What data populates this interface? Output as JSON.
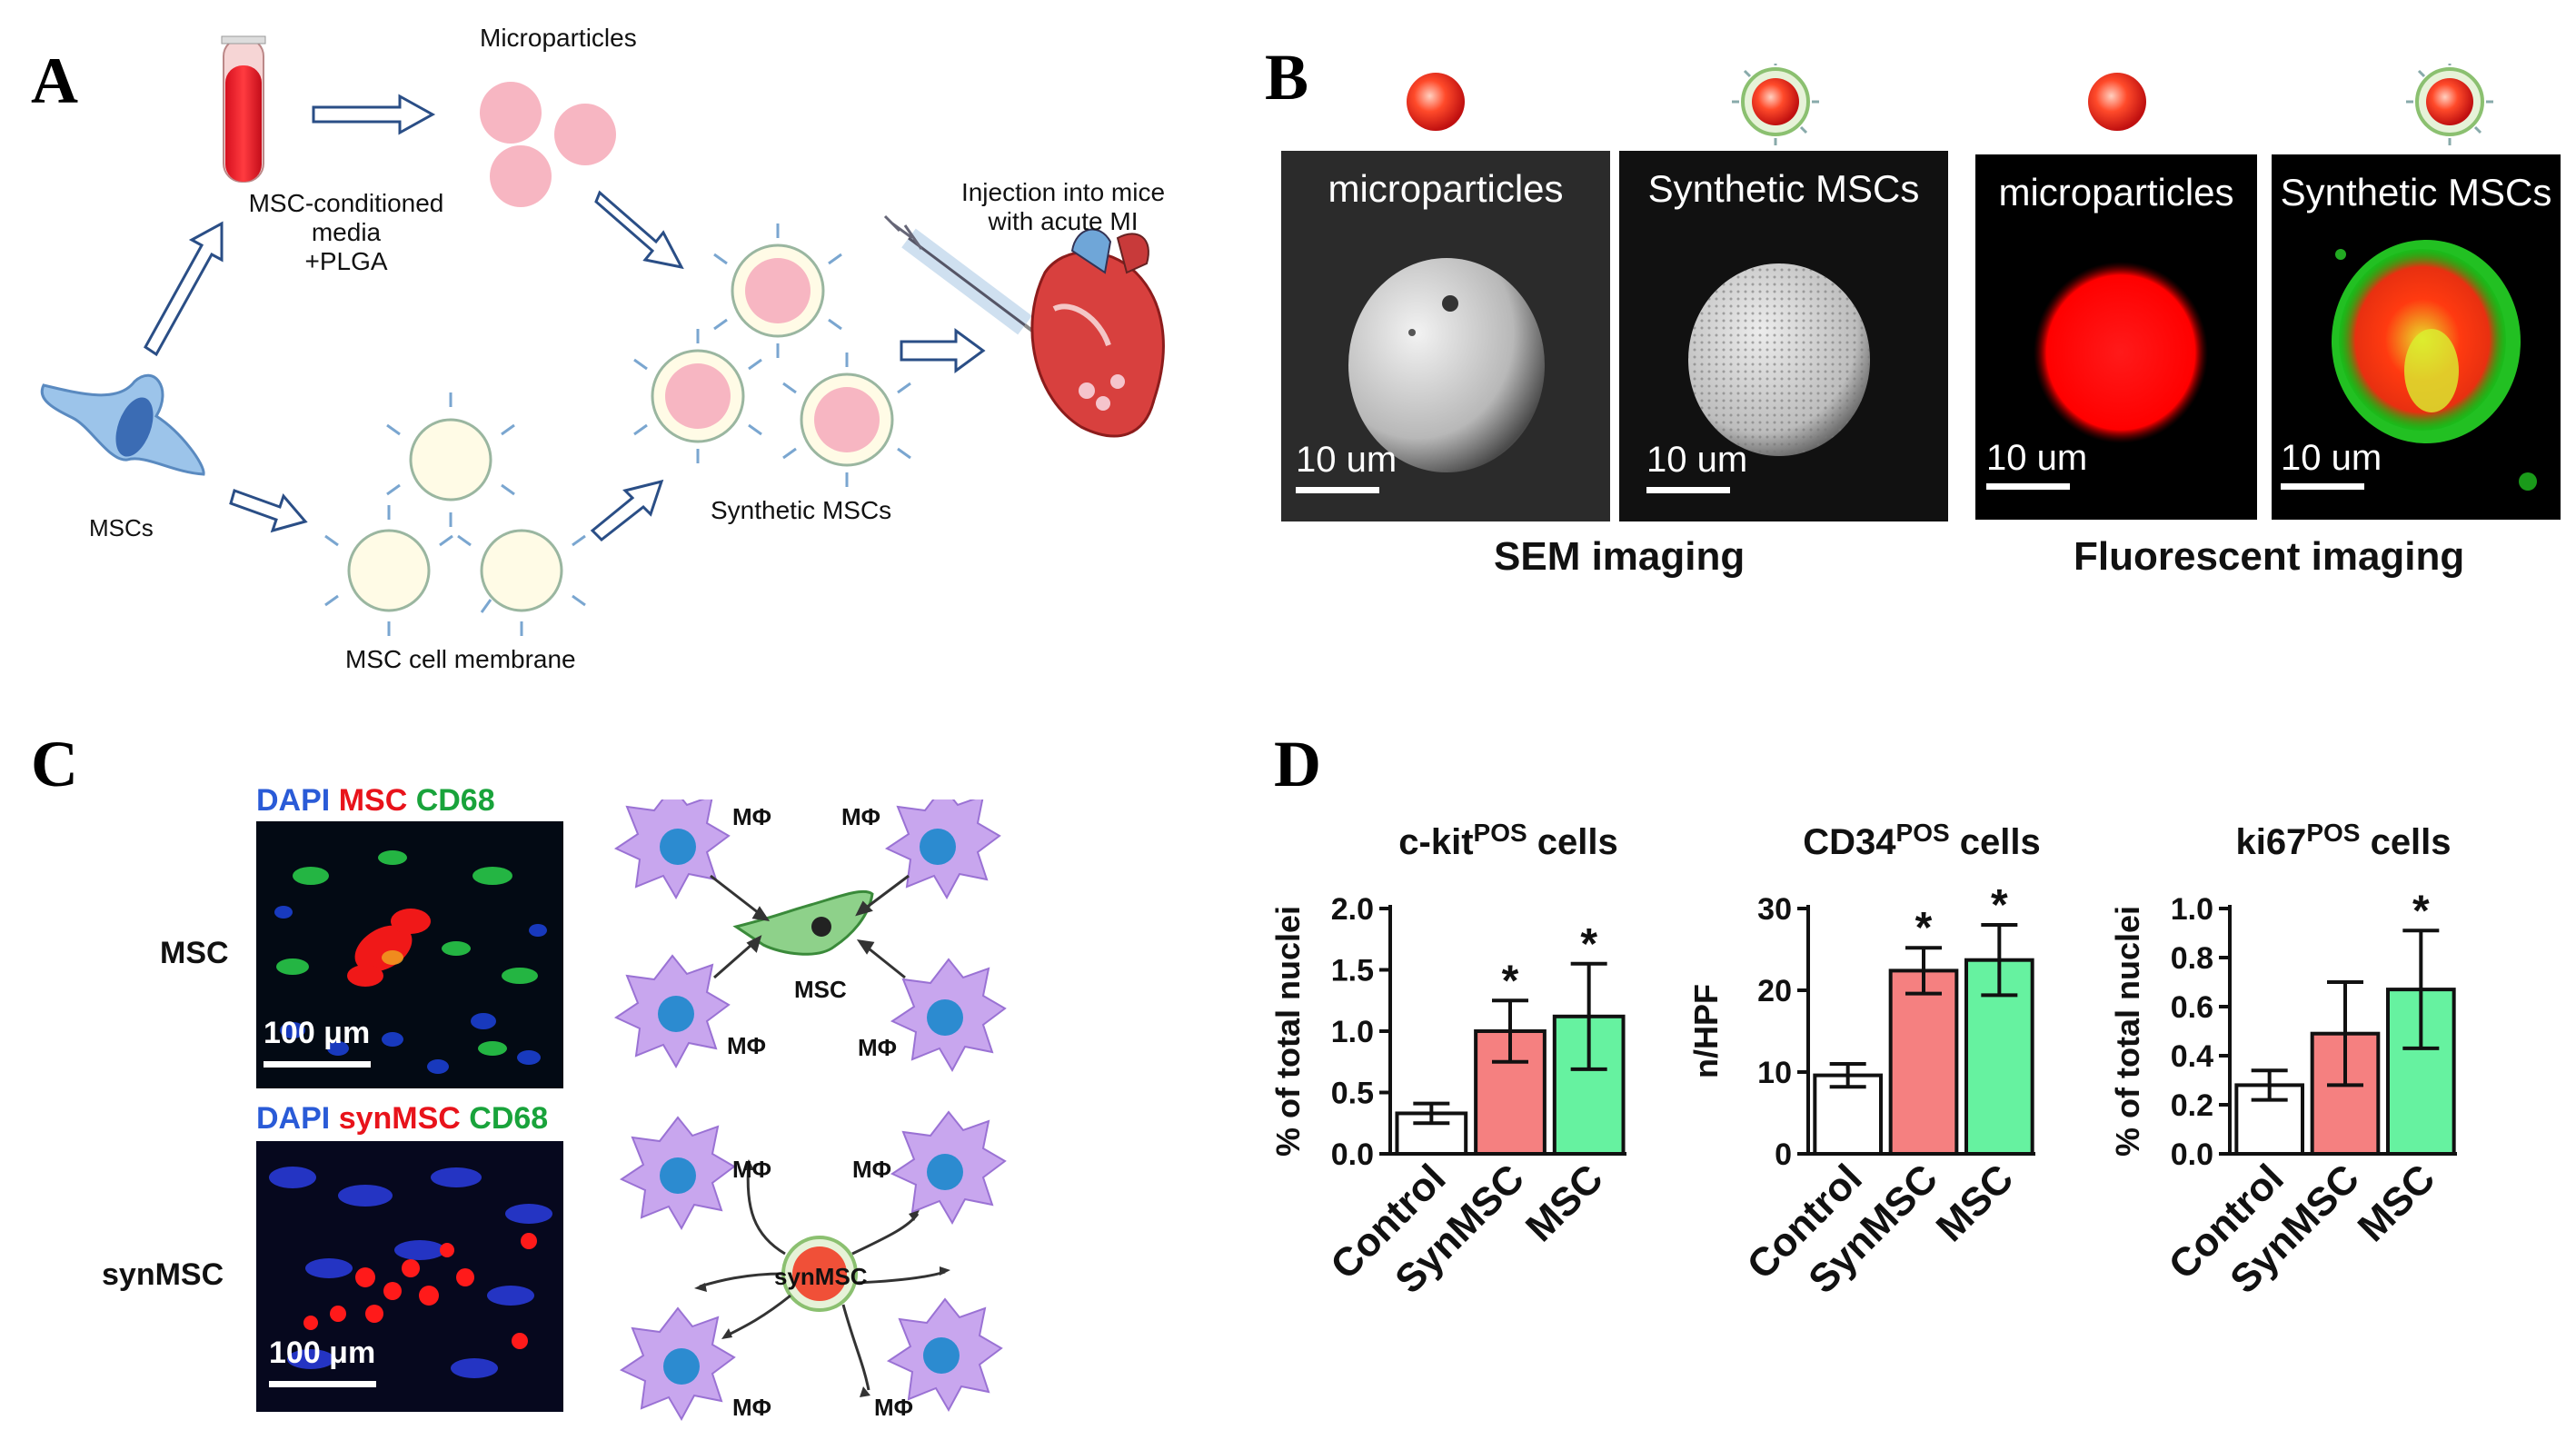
{
  "panels": {
    "A": {
      "letter": "A",
      "microparticles": "Microparticles",
      "media_line1": "MSC-conditioned media",
      "media_line2": "+PLGA",
      "mscs": "MSCs",
      "membrane": "MSC cell membrane",
      "synthetic": "Synthetic MSCs",
      "injection_line1": "Injection into mice",
      "injection_line2": "with acute MI"
    },
    "B": {
      "letter": "B",
      "img1_title": "microparticles",
      "img2_title": "Synthetic MSCs",
      "img3_title": "microparticles",
      "img4_title": "Synthetic MSCs",
      "scale": "10 um",
      "sem_caption": "SEM imaging",
      "fluor_caption": "Fluorescent imaging"
    },
    "C": {
      "letter": "C",
      "top_legend": {
        "dapi": "DAPI",
        "stain": "MSC",
        "cd68": "CD68"
      },
      "bottom_legend": {
        "dapi": "DAPI",
        "stain": "synMSC",
        "cd68": "CD68"
      },
      "row1_label": "MSC",
      "row2_label": "synMSC",
      "scale": "100 μm",
      "macrophage": "MΦ",
      "center_msc": "MSC",
      "center_synmsc": "synMSC"
    },
    "D": {
      "letter": "D"
    }
  },
  "colors": {
    "control": "#ffffff",
    "synmsc": "#f58080",
    "msc": "#66f2a0",
    "dapi": "#2a5bd7",
    "red": "#e8131b",
    "green": "#19a33b"
  },
  "chart_data": [
    {
      "type": "bar",
      "title": "c-kit",
      "title_sup": "POS",
      "title_suffix": "cells",
      "ylabel": "% of total nuclei",
      "ylim": [
        0,
        2.0
      ],
      "yticks": [
        "0.0",
        "0.5",
        "1.0",
        "1.5",
        "2.0"
      ],
      "ytick_values": [
        0,
        0.5,
        1.0,
        1.5,
        2.0
      ],
      "categories": [
        "Control",
        "SynMSC",
        "MSC"
      ],
      "values": [
        0.33,
        1.0,
        1.12
      ],
      "errors": [
        0.08,
        0.25,
        0.43
      ],
      "significant": [
        false,
        true,
        true
      ],
      "marker": "*"
    },
    {
      "type": "bar",
      "title": "CD34",
      "title_sup": "POS",
      "title_suffix": "cells",
      "ylabel": "n/HPF",
      "ylim": [
        0,
        30
      ],
      "yticks": [
        "0",
        "10",
        "20",
        "30"
      ],
      "ytick_values": [
        0,
        10,
        20,
        30
      ],
      "categories": [
        "Control",
        "SynMSC",
        "MSC"
      ],
      "values": [
        9.6,
        22.4,
        23.7
      ],
      "errors": [
        1.4,
        2.8,
        4.3
      ],
      "significant": [
        false,
        true,
        true
      ],
      "marker": "*"
    },
    {
      "type": "bar",
      "title": "ki67",
      "title_sup": "POS",
      "title_suffix": "cells",
      "ylabel": "% of total nuclei",
      "ylim": [
        0,
        1.0
      ],
      "yticks": [
        "0.0",
        "0.2",
        "0.4",
        "0.6",
        "0.8",
        "1.0"
      ],
      "ytick_values": [
        0,
        0.2,
        0.4,
        0.6,
        0.8,
        1.0
      ],
      "categories": [
        "Control",
        "SynMSC",
        "MSC"
      ],
      "values": [
        0.28,
        0.49,
        0.67
      ],
      "errors": [
        0.06,
        0.21,
        0.24
      ],
      "significant": [
        false,
        false,
        true
      ],
      "marker": "*"
    }
  ]
}
